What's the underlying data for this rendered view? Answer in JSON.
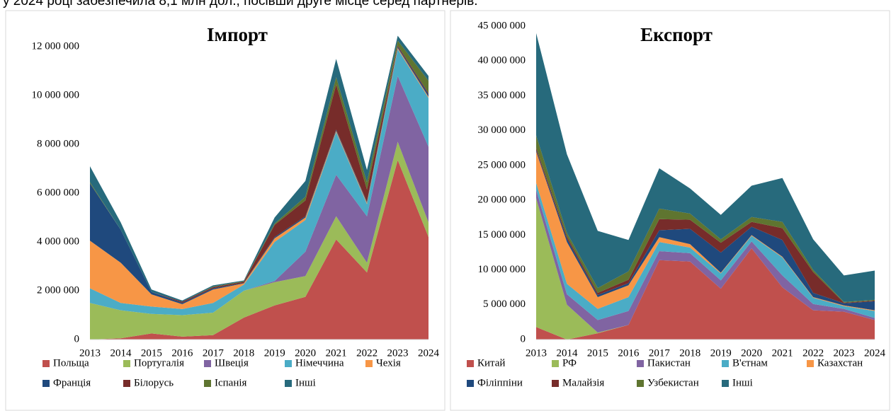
{
  "caption": "у 2024 році забезпечила 8,1 млн дол., посівши друге місце серед партнерів.",
  "chart_data": [
    {
      "type": "area",
      "stacked": true,
      "title": "Імпорт",
      "categories": [
        "2013",
        "2014",
        "2015",
        "2016",
        "2017",
        "2018",
        "2019",
        "2020",
        "2021",
        "2022",
        "2023",
        "2024"
      ],
      "ylim": [
        0,
        13000000
      ],
      "yticks": [
        0,
        {
          "value": 2000000,
          "label": "2 000 000"
        },
        {
          "value": 4000000,
          "label": "4 000 000"
        },
        {
          "value": 6000000,
          "label": "6 000 000"
        },
        {
          "value": 8000000,
          "label": "8 000 000"
        },
        {
          "value": 10000000,
          "label": "10 000 000"
        },
        {
          "value": 12000000,
          "label": "12 000 000"
        }
      ],
      "legend": "bottom",
      "series": [
        {
          "name": "Польща",
          "color": "#c0504d",
          "values": [
            0,
            50000,
            250000,
            120000,
            180000,
            900000,
            1400000,
            1750000,
            4100000,
            2750000,
            7350000,
            4200000
          ]
        },
        {
          "name": "Португалія",
          "color": "#9bbb59",
          "values": [
            1500000,
            1150000,
            800000,
            880000,
            920000,
            1100000,
            950000,
            850000,
            950000,
            400000,
            750000,
            600000
          ]
        },
        {
          "name": "Швеція",
          "color": "#8064a2",
          "values": [
            0,
            0,
            0,
            0,
            0,
            0,
            50000,
            1000000,
            1700000,
            1900000,
            2700000,
            3100000
          ]
        },
        {
          "name": "Німеччина",
          "color": "#4bacc6",
          "values": [
            600000,
            300000,
            300000,
            250000,
            400000,
            250000,
            1600000,
            1300000,
            1750000,
            500000,
            1100000,
            2000000
          ]
        },
        {
          "name": "Чехія",
          "color": "#f79646",
          "values": [
            1950000,
            1650000,
            500000,
            200000,
            550000,
            50000,
            150000,
            100000,
            50000,
            50000,
            50000,
            50000
          ]
        },
        {
          "name": "Франція",
          "color": "#1f497d",
          "values": [
            2350000,
            1350000,
            100000,
            50000,
            50000,
            20000,
            50000,
            50000,
            50000,
            50000,
            50000,
            100000
          ]
        },
        {
          "name": "Білорусь",
          "color": "#772c2a",
          "values": [
            0,
            0,
            0,
            50000,
            50000,
            50000,
            500000,
            650000,
            1850000,
            500000,
            50000,
            50000
          ]
        },
        {
          "name": "Іспанія",
          "color": "#5f7530",
          "values": [
            50000,
            0,
            0,
            0,
            20000,
            20000,
            50000,
            150000,
            300000,
            300000,
            200000,
            500000
          ]
        },
        {
          "name": "Інші",
          "color": "#276a7c",
          "values": [
            650000,
            300000,
            100000,
            50000,
            50000,
            30000,
            250000,
            650000,
            750000,
            500000,
            200000,
            200000
          ]
        }
      ]
    },
    {
      "type": "area",
      "stacked": true,
      "title": "Експорт",
      "categories": [
        "2013",
        "2014",
        "2015",
        "2016",
        "2017",
        "2018",
        "2019",
        "2020",
        "2021",
        "2022",
        "2023",
        "2024"
      ],
      "ylim": [
        0,
        45000000
      ],
      "yticks": [
        0,
        {
          "value": 5000000,
          "label": "5 000 000"
        },
        {
          "value": 10000000,
          "label": "10 000 000"
        },
        {
          "value": 15000000,
          "label": "15 000 000"
        },
        {
          "value": 20000000,
          "label": "20 000 000"
        },
        {
          "value": 25000000,
          "label": "25 000 000"
        },
        {
          "value": 30000000,
          "label": "30 000 000"
        },
        {
          "value": 35000000,
          "label": "35 000 000"
        },
        {
          "value": 40000000,
          "label": "40 000 000"
        },
        {
          "value": 45000000,
          "label": "45 000 000"
        }
      ],
      "legend": "bottom",
      "series": [
        {
          "name": "Китай",
          "color": "#c0504d",
          "values": [
            1800000,
            0,
            900000,
            2100000,
            11400000,
            11200000,
            7300000,
            13100000,
            7500000,
            4200000,
            4000000,
            2800000
          ]
        },
        {
          "name": "РФ",
          "color": "#9bbb59",
          "values": [
            18500000,
            5000000,
            100000,
            0,
            0,
            0,
            0,
            0,
            0,
            0,
            0,
            0
          ]
        },
        {
          "name": "Пакистан",
          "color": "#8064a2",
          "values": [
            1200000,
            1500000,
            1800000,
            2000000,
            1300000,
            1200000,
            1200000,
            1000000,
            1700000,
            900000,
            400000,
            300000
          ]
        },
        {
          "name": "В'єтнам",
          "color": "#4bacc6",
          "values": [
            1000000,
            1500000,
            1600000,
            2000000,
            1300000,
            800000,
            1000000,
            800000,
            2600000,
            900000,
            400000,
            1000000
          ]
        },
        {
          "name": "Казахстан",
          "color": "#f79646",
          "values": [
            4500000,
            6000000,
            1700000,
            1700000,
            700000,
            500000,
            100000,
            100000,
            100000,
            100000,
            100000,
            100000
          ]
        },
        {
          "name": "Філіппіни",
          "color": "#1f497d",
          "values": [
            200000,
            500000,
            300000,
            300000,
            1000000,
            2200000,
            2900000,
            1200000,
            2400000,
            600000,
            300000,
            1300000
          ]
        },
        {
          "name": "Малайзія",
          "color": "#772c2a",
          "values": [
            300000,
            300000,
            300000,
            500000,
            1600000,
            1300000,
            1400000,
            700000,
            1700000,
            3000000,
            100000,
            100000
          ]
        },
        {
          "name": "Узбекистан",
          "color": "#5f7530",
          "values": [
            1800000,
            500000,
            700000,
            1200000,
            1500000,
            900000,
            500000,
            700000,
            900000,
            300000,
            100000,
            100000
          ]
        },
        {
          "name": "Інші",
          "color": "#276a7c",
          "values": [
            14700000,
            11300000,
            8200000,
            4500000,
            5800000,
            3600000,
            3500000,
            4500000,
            6300000,
            4400000,
            3800000,
            4200000
          ]
        }
      ]
    }
  ]
}
